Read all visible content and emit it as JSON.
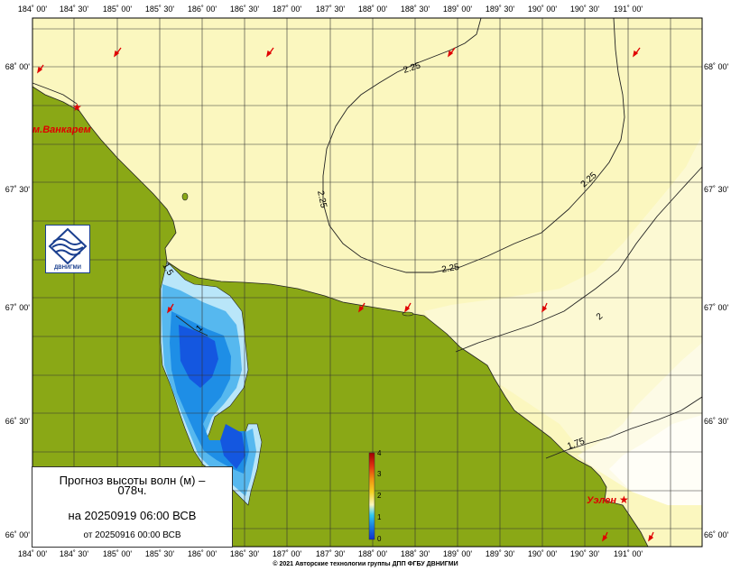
{
  "lon_ticks": [
    "184˚ 00'",
    "184˚ 30'",
    "185˚ 00'",
    "185˚ 30'",
    "186˚ 00'",
    "186˚ 30'",
    "187˚ 00'",
    "187˚ 30'",
    "188˚ 00'",
    "188˚ 30'",
    "189˚ 00'",
    "189˚ 30'",
    "190˚ 00'",
    "190˚ 30'",
    "191˚ 00'"
  ],
  "lat_ticks": [
    "68˚ 00'",
    "67˚ 30'",
    "67˚ 00'",
    "66˚ 30'",
    "66˚ 00'"
  ],
  "places": [
    {
      "name": "м.Ванкарем"
    },
    {
      "name": "Уэлен"
    }
  ],
  "contours": [
    {
      "label": "2.25"
    },
    {
      "label": "2.25"
    },
    {
      "label": "2.25"
    },
    {
      "label": "2.25"
    },
    {
      "label": "2"
    },
    {
      "label": "1.75"
    },
    {
      "label": "1.5"
    },
    {
      "label": "1"
    }
  ],
  "colorbar": {
    "ticks": [
      "0",
      "1",
      "2",
      "3",
      "4"
    ],
    "min": 0,
    "max": 4
  },
  "info": {
    "title_line1": "Прогноз высоты волн (м) –",
    "title_line2": "078ч.",
    "forecast_date": "на 20250919 06:00 ВСВ",
    "issued": "от 20250916 00:00 ВСВ"
  },
  "logo": {
    "text": "ДВНИГМИ"
  },
  "footer": "© 2021 Авторские технологии группы ДПП ФГБУ ДВНИГМИ",
  "colors": {
    "land": "#8aa816",
    "sea_high": "#fbf7bf",
    "sea_mid": "#fcf9d3",
    "sea_low": "#fdfbe6",
    "sea_calm": "#fffef7",
    "lagoon_shallow": "#56b8ef",
    "lagoon_mid": "#1e8ee6",
    "lagoon_deep": "#1457e0",
    "lagoon_edge": "#b9e6f9",
    "arrow": "#e00000",
    "place_label": "#e00000"
  }
}
